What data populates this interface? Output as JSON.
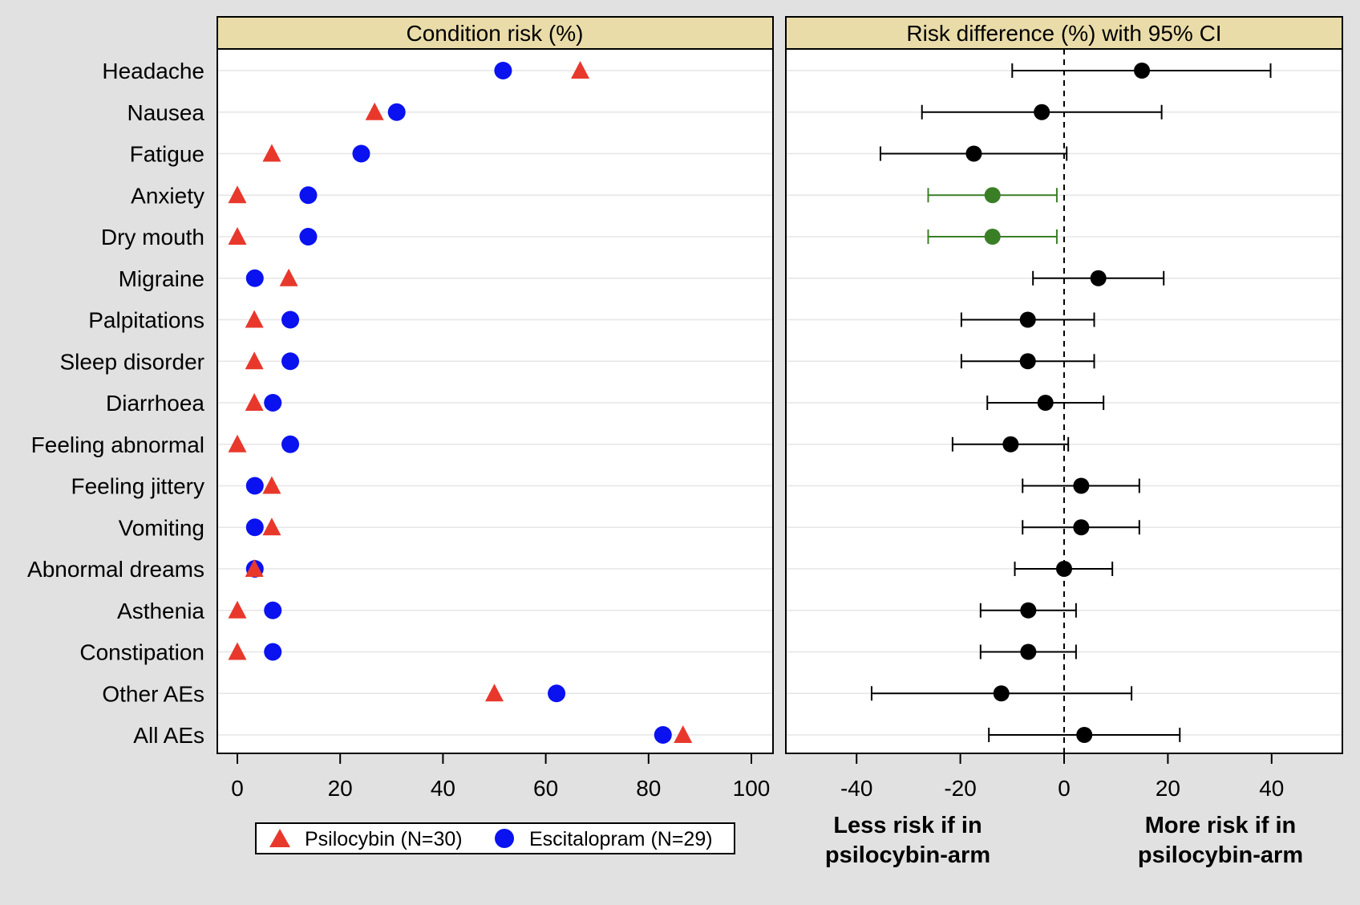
{
  "chart_data": [
    {
      "type": "scatter",
      "title": "Condition risk (%)",
      "categories": [
        "Headache",
        "Nausea",
        "Fatigue",
        "Anxiety",
        "Dry mouth",
        "Migraine",
        "Palpitations",
        "Sleep disorder",
        "Diarrhoea",
        "Feeling abnormal",
        "Feeling jittery",
        "Vomiting",
        "Abnormal dreams",
        "Asthenia",
        "Constipation",
        "Other AEs",
        "All AEs"
      ],
      "xlim": [
        0,
        100
      ],
      "xticks": [
        "0",
        "20",
        "40",
        "60",
        "80",
        "100"
      ],
      "grid": true,
      "legend_position": "bottom",
      "series": [
        {
          "name": "Psilocybin (N=30)",
          "marker": "triangle",
          "color": "#e8382c",
          "values": [
            66.7,
            26.7,
            6.7,
            0,
            0,
            10,
            3.3,
            3.3,
            3.3,
            0,
            6.7,
            6.7,
            3.3,
            0,
            0,
            50,
            86.7
          ]
        },
        {
          "name": "Escitalopram (N=29)",
          "marker": "circle",
          "color": "#0a12f0",
          "values": [
            51.7,
            31,
            24.1,
            13.8,
            13.8,
            3.4,
            10.3,
            10.3,
            6.9,
            10.3,
            3.4,
            3.4,
            3.4,
            6.9,
            6.9,
            62.1,
            82.8
          ]
        }
      ]
    },
    {
      "type": "scatter",
      "title": "Risk difference (%) with 95% CI",
      "xlim": [
        -52,
        54
      ],
      "xticks": [
        "-40",
        "-20",
        "0",
        "20",
        "40"
      ],
      "reference_line": 0,
      "grid": true,
      "series": [
        {
          "name": "",
          "estimate": [
            15,
            -4.3,
            -17.4,
            -13.8,
            -13.8,
            6.6,
            -7,
            -7,
            -3.6,
            -10.3,
            3.3,
            3.3,
            0,
            -6.9,
            -6.9,
            -12.1,
            3.9
          ],
          "ci_low": [
            -10,
            -27.4,
            -35.4,
            -26.2,
            -26.2,
            -6,
            -19.8,
            -19.8,
            -14.8,
            -21.5,
            -8,
            -8,
            -9.5,
            -16.1,
            -16.1,
            -37.1,
            -14.5
          ],
          "ci_high": [
            39.8,
            18.8,
            0.5,
            -1.4,
            -1.4,
            19.2,
            5.8,
            5.8,
            7.6,
            0.8,
            14.5,
            14.5,
            9.3,
            2.3,
            2.3,
            13,
            22.3
          ],
          "colors": [
            "#000000",
            "#000000",
            "#000000",
            "#3a7f26",
            "#3a7f26",
            "#000000",
            "#000000",
            "#000000",
            "#000000",
            "#000000",
            "#000000",
            "#000000",
            "#000000",
            "#000000",
            "#000000",
            "#000000",
            "#000000"
          ]
        }
      ],
      "annotation_left": [
        "Less risk if in",
        "psilocybin-arm"
      ],
      "annotation_right": [
        "More risk if in",
        "psilocybin-arm"
      ]
    }
  ],
  "colors": {
    "header_fill": "#eadca8",
    "background": "#e1e1e1"
  }
}
